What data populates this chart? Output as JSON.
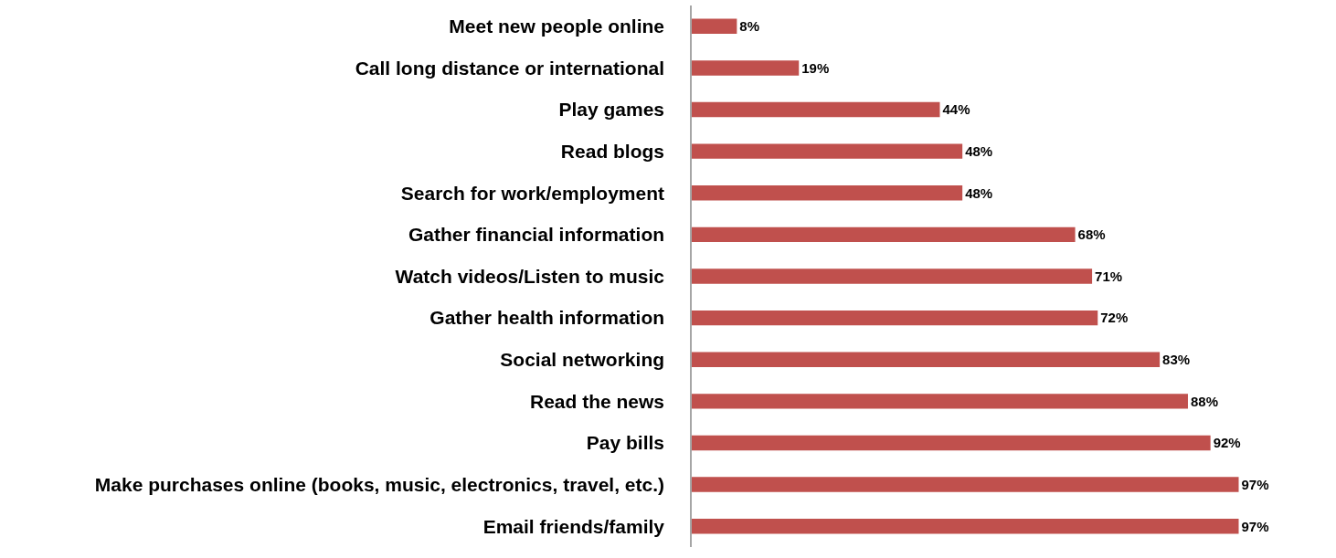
{
  "chart_data": {
    "type": "bar",
    "orientation": "horizontal",
    "categories": [
      "Meet new people online",
      "Call long distance or international",
      "Play games",
      "Read blogs",
      "Search for work/employment",
      "Gather financial information",
      "Watch videos/Listen to music",
      "Gather health information",
      "Social networking",
      "Read the news",
      "Pay bills",
      "Make purchases online (books, music, electronics, travel, etc.)",
      "Email friends/family"
    ],
    "values": [
      8,
      19,
      44,
      48,
      48,
      68,
      71,
      72,
      83,
      88,
      92,
      97,
      97
    ],
    "value_labels": [
      "8%",
      "19%",
      "44%",
      "48%",
      "48%",
      "68%",
      "71%",
      "72%",
      "83%",
      "88%",
      "92%",
      "97%",
      "97%"
    ],
    "tick_labels": "y",
    "color": "#c0504d",
    "legend": false
  }
}
